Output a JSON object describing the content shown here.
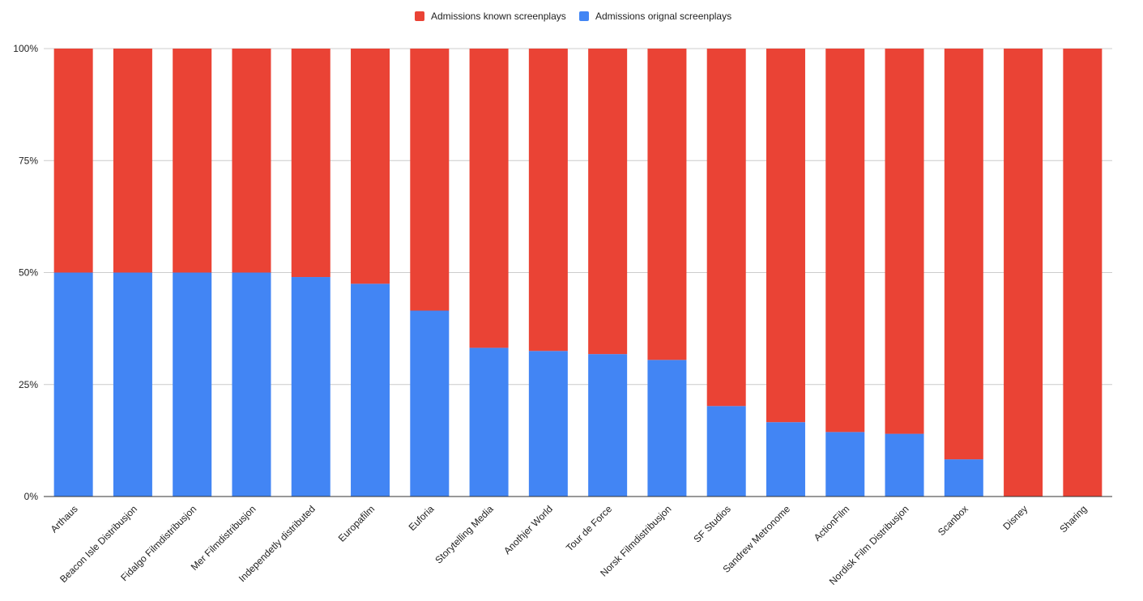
{
  "chart_data": {
    "type": "bar",
    "stacked": true,
    "normalized_percent": true,
    "categories": [
      "Arthaus",
      "Beacon Isle Distribusjon",
      "Fidalgo Filmdistribusjon",
      "Mer Filmdistribusjon",
      "Independetly distributed",
      "Europafilm",
      "Euforia",
      "Storytelling Media",
      "Anothjer World",
      "Tour de Force",
      "Norsk Filmdistribusjon",
      "SF Studios",
      "Sandrew Metronome",
      "ActionFilm",
      "Nordisk Film Distribusjon",
      "Scanbox",
      "Disney",
      "Sharing"
    ],
    "series": [
      {
        "name": "Admissions orignal screenplays",
        "color": "#4285f4",
        "values": [
          50,
          50,
          50,
          50,
          49,
          47.5,
          41.5,
          33.2,
          32.5,
          31.8,
          30.5,
          20.2,
          16.6,
          14.4,
          14,
          8.3,
          0,
          0
        ]
      },
      {
        "name": "Admissions known screenplays",
        "color": "#ea4335",
        "values": [
          50,
          50,
          50,
          50,
          51,
          52.5,
          58.5,
          66.8,
          67.5,
          68.2,
          69.5,
          79.8,
          83.4,
          85.6,
          86,
          91.7,
          100,
          100
        ]
      }
    ],
    "legend": {
      "position": "top",
      "entries": [
        {
          "label": "Admissions known screenplays",
          "color": "#ea4335"
        },
        {
          "label": "Admissions orignal screenplays",
          "color": "#4285f4"
        }
      ]
    },
    "y_ticks": [
      "0%",
      "25%",
      "50%",
      "75%",
      "100%"
    ],
    "ylim": [
      0,
      100
    ],
    "grid": true,
    "title": "",
    "xlabel": "",
    "ylabel": ""
  }
}
